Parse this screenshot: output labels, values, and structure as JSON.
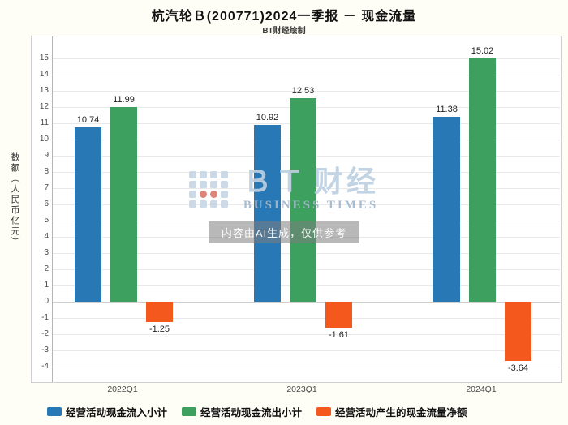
{
  "chart_data": {
    "type": "bar",
    "title": "杭汽轮Ｂ(200771)2024一季报 － 现金流量",
    "subtitle": "BT财经绘制",
    "ylabel": "数额（人民币亿元）",
    "xlabel": "",
    "ylim": [
      -4,
      15
    ],
    "ytick_step": 1,
    "grid": true,
    "legend_position": "bottom",
    "categories": [
      "2022Q1",
      "2023Q1",
      "2024Q1"
    ],
    "series": [
      {
        "name": "经营活动现金流入小计",
        "color": "#2878b5",
        "values": [
          10.74,
          10.92,
          11.38
        ]
      },
      {
        "name": "经营活动现金流出小计",
        "color": "#3da05f",
        "values": [
          11.99,
          12.53,
          15.02
        ]
      },
      {
        "name": "经营活动产生的现金流量净额",
        "color": "#f4581c",
        "values": [
          -1.25,
          -1.61,
          -3.64
        ]
      }
    ]
  },
  "watermark": {
    "brand_bt": "ＢＴ",
    "brand_cn": "财经",
    "brand_en": "BUSINESS TIMES",
    "disclaimer": "内容由AI生成，仅供参考"
  }
}
